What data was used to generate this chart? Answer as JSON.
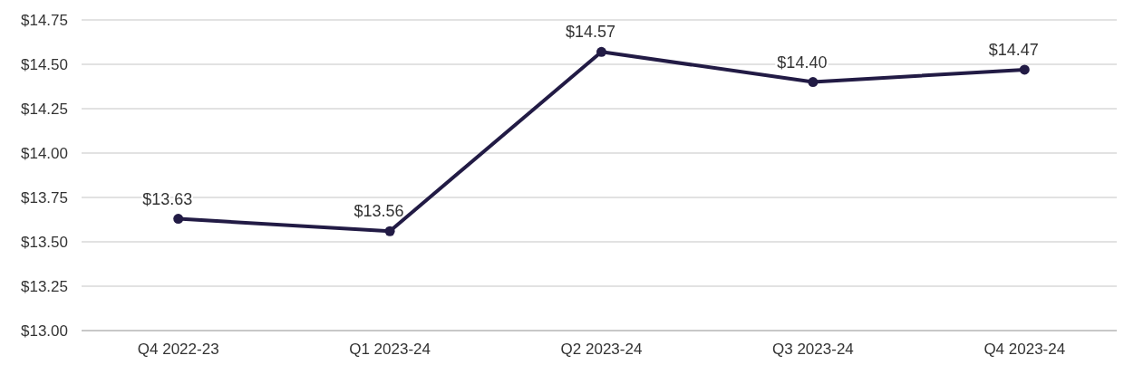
{
  "chart_data": {
    "type": "line",
    "categories": [
      "Q4 2022-23",
      "Q1 2023-24",
      "Q2 2023-24",
      "Q3 2023-24",
      "Q4 2023-24"
    ],
    "series": [
      {
        "color": "#221b45",
        "values": [
          13.63,
          13.56,
          14.57,
          14.4,
          14.47
        ],
        "value_labels": [
          "$13.63",
          "$13.56",
          "$14.57",
          "$14.40",
          "$14.47"
        ]
      }
    ],
    "ylim": [
      13.0,
      14.75
    ],
    "yticks": [
      {
        "value": 13.0,
        "label": "$13.00"
      },
      {
        "value": 13.25,
        "label": "$13.25"
      },
      {
        "value": 13.5,
        "label": "$13.50"
      },
      {
        "value": 13.75,
        "label": "$13.75"
      },
      {
        "value": 14.0,
        "label": "$14.00"
      },
      {
        "value": 14.25,
        "label": "$14.25"
      },
      {
        "value": 14.5,
        "label": "$14.50"
      },
      {
        "value": 14.75,
        "label": "$14.75"
      }
    ],
    "grid": "y",
    "marker": "circle",
    "line_style": "solid"
  }
}
